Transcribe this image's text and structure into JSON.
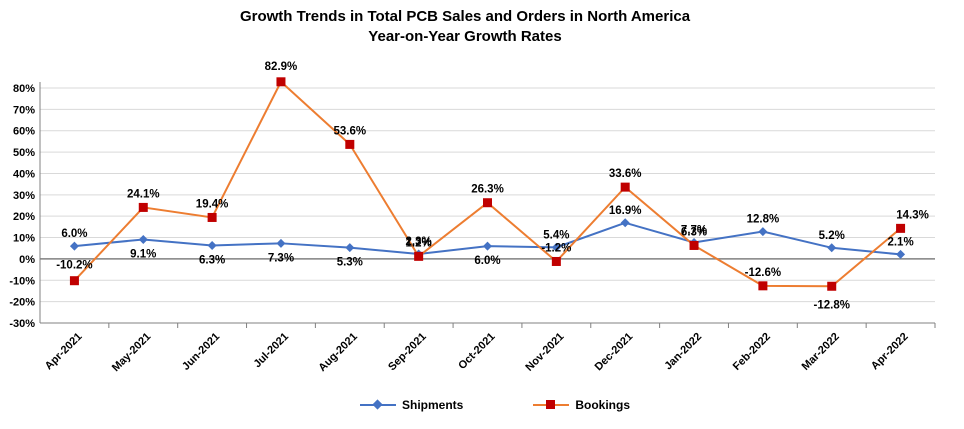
{
  "title": "Growth Trends in Total PCB Sales and Orders in North America",
  "subtitle": "Year-on-Year Growth Rates",
  "chart_data": {
    "type": "line",
    "categories": [
      "Apr-2021",
      "May-2021",
      "Jun-2021",
      "Jul-2021",
      "Aug-2021",
      "Sep-2021",
      "Oct-2021",
      "Nov-2021",
      "Dec-2021",
      "Jan-2022",
      "Feb-2022",
      "Mar-2022",
      "Apr-2022"
    ],
    "ylim": [
      -30,
      80
    ],
    "yticks": [
      "-30%",
      "-20%",
      "-10%",
      "0%",
      "10%",
      "20%",
      "30%",
      "40%",
      "50%",
      "60%",
      "70%",
      "80%"
    ],
    "grid": true,
    "legend_position": "bottom",
    "series": [
      {
        "name": "Shipments",
        "color": "#4472C4",
        "marker": "diamond",
        "values": [
          6.0,
          9.1,
          6.3,
          7.3,
          5.3,
          2.3,
          6.0,
          5.4,
          16.9,
          7.7,
          12.8,
          5.2,
          2.1
        ],
        "labels": [
          "6.0%",
          "9.1%",
          "6.3%",
          "7.3%",
          "5.3%",
          "2.3%",
          "6.0%",
          "5.4%",
          "16.9%",
          "7.7%",
          "12.8%",
          "5.2%",
          "2.1%"
        ]
      },
      {
        "name": "Bookings",
        "color": "#ED7D31",
        "marker_color": "#C00000",
        "marker": "square",
        "values": [
          -10.2,
          24.1,
          19.4,
          82.9,
          53.6,
          1.2,
          26.3,
          -1.2,
          33.6,
          6.3,
          -12.6,
          -12.8,
          14.3
        ],
        "labels": [
          "-10.2%",
          "24.1%",
          "19.4%",
          "82.9%",
          "53.6%",
          "1.2%",
          "26.3%",
          "-1.2%",
          "33.6%",
          "6.3%",
          "-12.6%",
          "-12.8%",
          "14.3%"
        ]
      }
    ]
  }
}
